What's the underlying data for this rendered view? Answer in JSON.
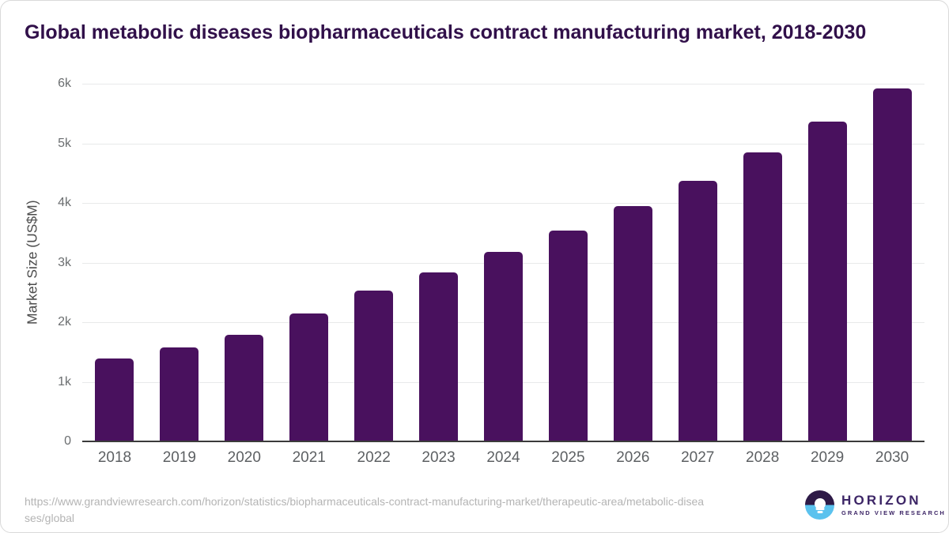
{
  "chart_data": {
    "type": "bar",
    "title": "Global metabolic diseases biopharmaceuticals contract manufacturing market, 2018-2030",
    "categories": [
      "2018",
      "2019",
      "2020",
      "2021",
      "2022",
      "2023",
      "2024",
      "2025",
      "2026",
      "2027",
      "2028",
      "2029",
      "2030"
    ],
    "values": [
      1390,
      1570,
      1790,
      2150,
      2530,
      2840,
      3180,
      3540,
      3950,
      4370,
      4850,
      5370,
      5920
    ],
    "unit": "US$M",
    "xlabel": "",
    "ylabel": "Market Size (US$M)",
    "ylim": [
      0,
      6000
    ],
    "yticks": [
      {
        "value": 0,
        "label": "0"
      },
      {
        "value": 1000,
        "label": "1k"
      },
      {
        "value": 2000,
        "label": "2k"
      },
      {
        "value": 3000,
        "label": "3k"
      },
      {
        "value": 4000,
        "label": "4k"
      },
      {
        "value": 5000,
        "label": "5k"
      },
      {
        "value": 6000,
        "label": "6k"
      }
    ],
    "grid": "horizontal-light",
    "legend": "none",
    "bar_color": "#49115E"
  },
  "footer": {
    "source_url": "https://www.grandviewresearch.com/horizon/statistics/biopharmaceuticals-contract-manufacturing-market/therapeutic-area/metabolic-diseases/global"
  },
  "logo": {
    "brand": "HORIZON",
    "tagline": "GRAND VIEW RESEARCH"
  },
  "colors": {
    "background": "#FFFFFF",
    "bar": "#49115E",
    "title": "#31104A",
    "axis_title": "#4C4C4C",
    "tick_label": "#6B6E70",
    "x_label": "#5D6063",
    "gridline": "#E8E9EA",
    "baseline": "#3B3B3B",
    "url_text": "#B4B4B4",
    "logo_purple": "#3C2566",
    "logo_dark": "#2E1A47",
    "logo_blue": "#5BC2EE"
  }
}
